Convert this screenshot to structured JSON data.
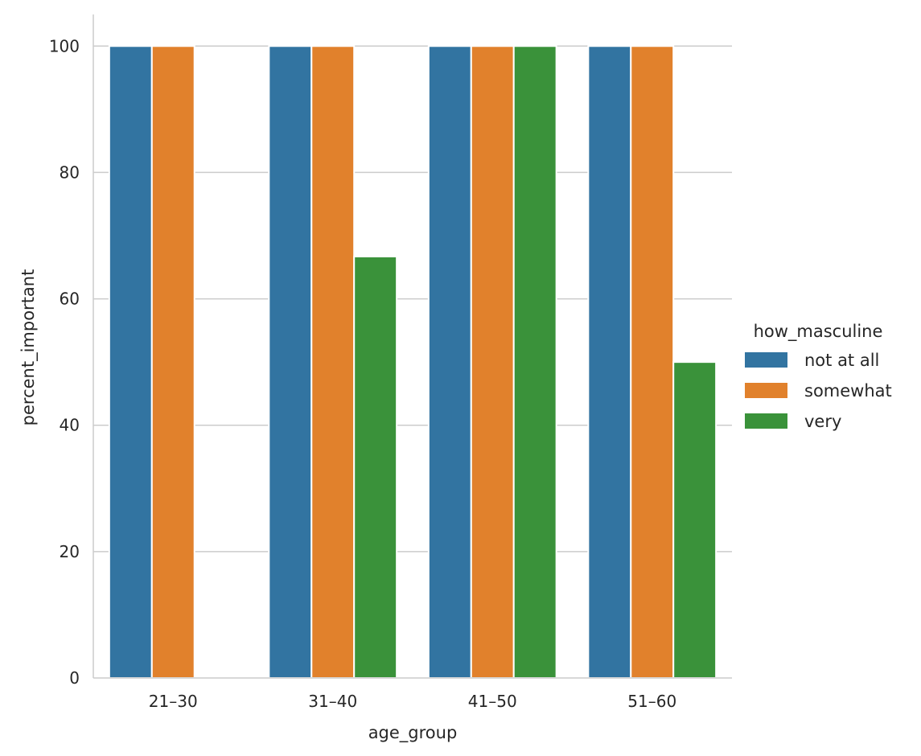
{
  "chart_data": {
    "type": "bar",
    "xlabel": "age_group",
    "ylabel": "percent_important",
    "categories": [
      "21–30",
      "31–40",
      "41–50",
      "51–60"
    ],
    "ylim": [
      0,
      105
    ],
    "yticks": [
      0,
      20,
      40,
      60,
      80,
      100
    ],
    "grid": "horizontal",
    "legend": {
      "title": "how_masculine",
      "placement": "right"
    },
    "series": [
      {
        "name": "not at all",
        "color": "#3274a1",
        "values": [
          100,
          100,
          100,
          100
        ]
      },
      {
        "name": "somewhat",
        "color": "#e1812c",
        "values": [
          100,
          100,
          100,
          100
        ]
      },
      {
        "name": "very",
        "color": "#3a923a",
        "values": [
          0,
          66.7,
          100,
          50
        ]
      }
    ]
  }
}
